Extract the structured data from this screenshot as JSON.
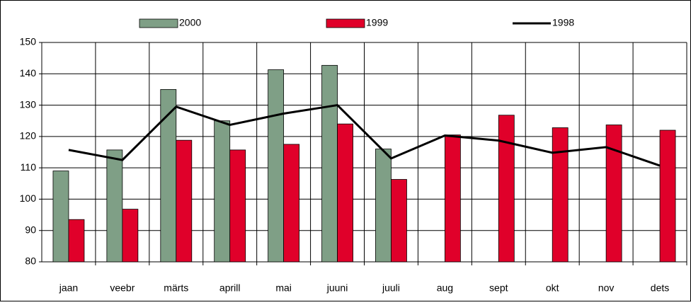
{
  "chart_data": {
    "type": "bar_line",
    "categories": [
      "jaan",
      "veebr",
      "märts",
      "aprill",
      "mai",
      "juuni",
      "juuli",
      "aug",
      "sept",
      "okt",
      "nov",
      "dets"
    ],
    "series": [
      {
        "name": "2000",
        "type": "bar",
        "color": "#7f9f86",
        "values": [
          109,
          115.7,
          135,
          125,
          141.3,
          142.7,
          116,
          null,
          null,
          null,
          null,
          null
        ]
      },
      {
        "name": "1999",
        "type": "bar",
        "color": "#e0002a",
        "values": [
          93.5,
          96.8,
          118.8,
          115.7,
          117.5,
          124,
          106.3,
          120.5,
          126.8,
          122.8,
          123.7,
          122
        ]
      },
      {
        "name": "1998",
        "type": "line",
        "color": "#000000",
        "values": [
          115.7,
          112.5,
          129.5,
          123.7,
          127.3,
          130,
          113,
          120.3,
          118.7,
          114.8,
          116.6,
          110.7
        ]
      }
    ],
    "ylim": [
      80,
      150
    ],
    "yticks": [
      80,
      90,
      100,
      110,
      120,
      130,
      140,
      150
    ],
    "grid": true,
    "legend": "top"
  }
}
